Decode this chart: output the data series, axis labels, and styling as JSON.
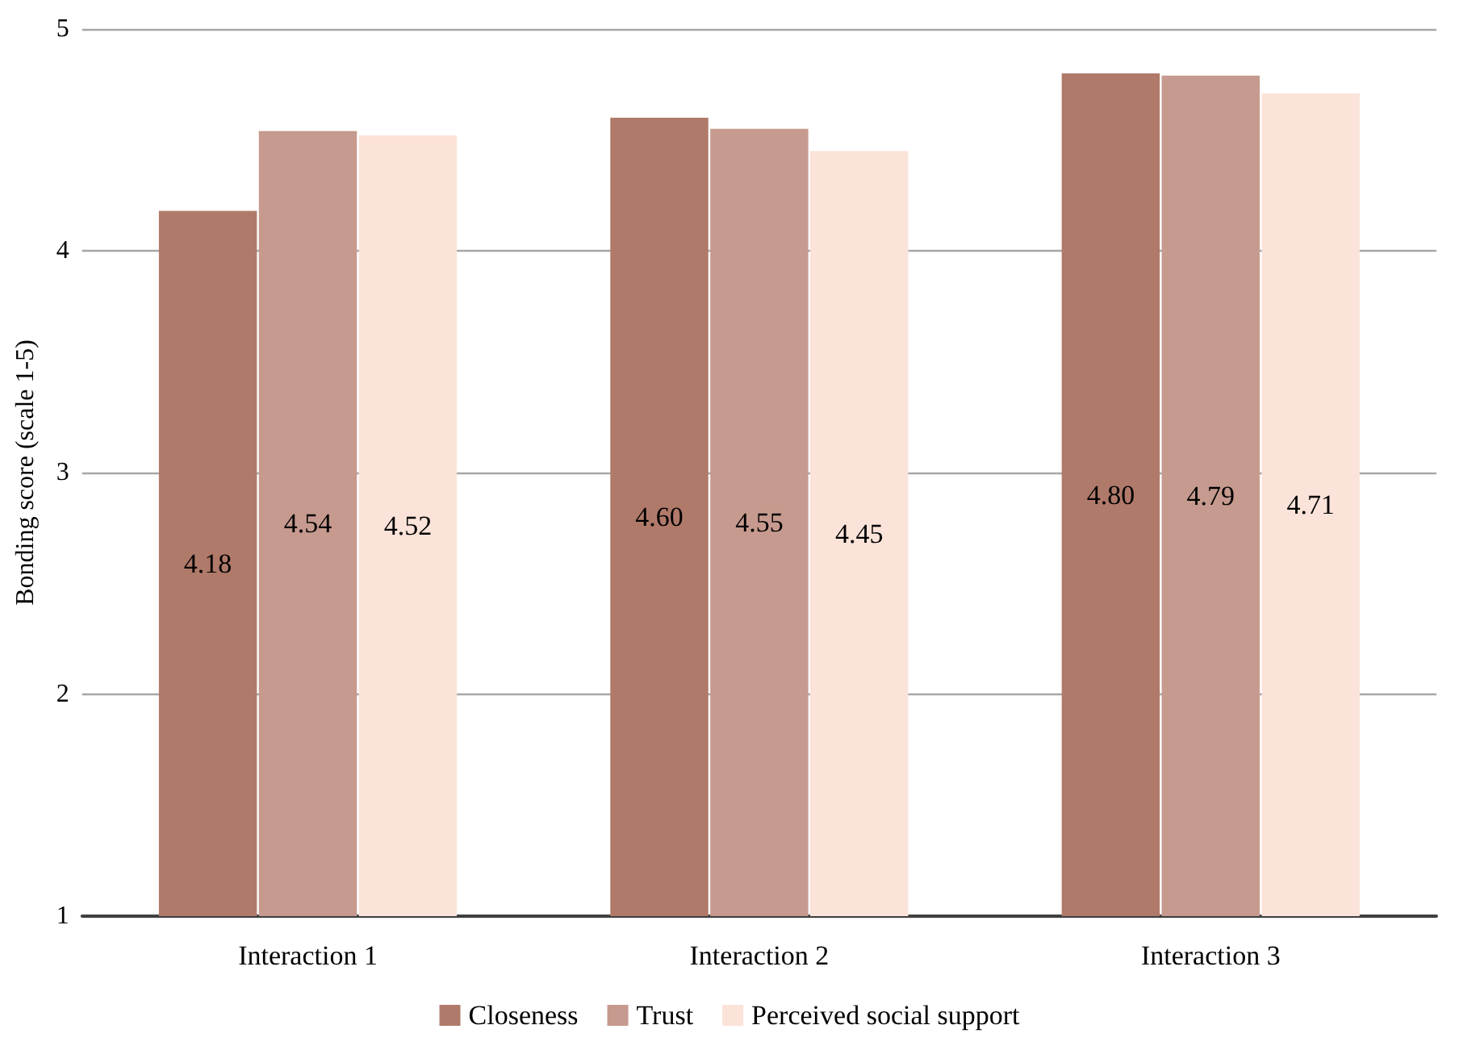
{
  "chart_data": {
    "type": "bar",
    "ylabel": "Bonding score (scale 1-5)",
    "categories": [
      "Interaction 1",
      "Interaction 2",
      "Interaction 3"
    ],
    "series": [
      {
        "name": "Closeness",
        "color": "#b07a6a",
        "values": [
          4.18,
          4.6,
          4.8
        ],
        "value_labels": [
          "4.18",
          "4.60",
          "4.80"
        ]
      },
      {
        "name": "Trust",
        "color": "#c69a8e",
        "values": [
          4.54,
          4.55,
          4.79
        ],
        "value_labels": [
          "4.54",
          "4.55",
          "4.79"
        ]
      },
      {
        "name": "Perceived social support",
        "color": "#fbe3d9",
        "values": [
          4.52,
          4.45,
          4.71
        ],
        "value_labels": [
          "4.52",
          "4.45",
          "4.71"
        ]
      }
    ],
    "ylim": [
      1,
      5
    ],
    "yticks": [
      1,
      2,
      3,
      4,
      5
    ],
    "grid": "y",
    "legend": "bottom"
  }
}
